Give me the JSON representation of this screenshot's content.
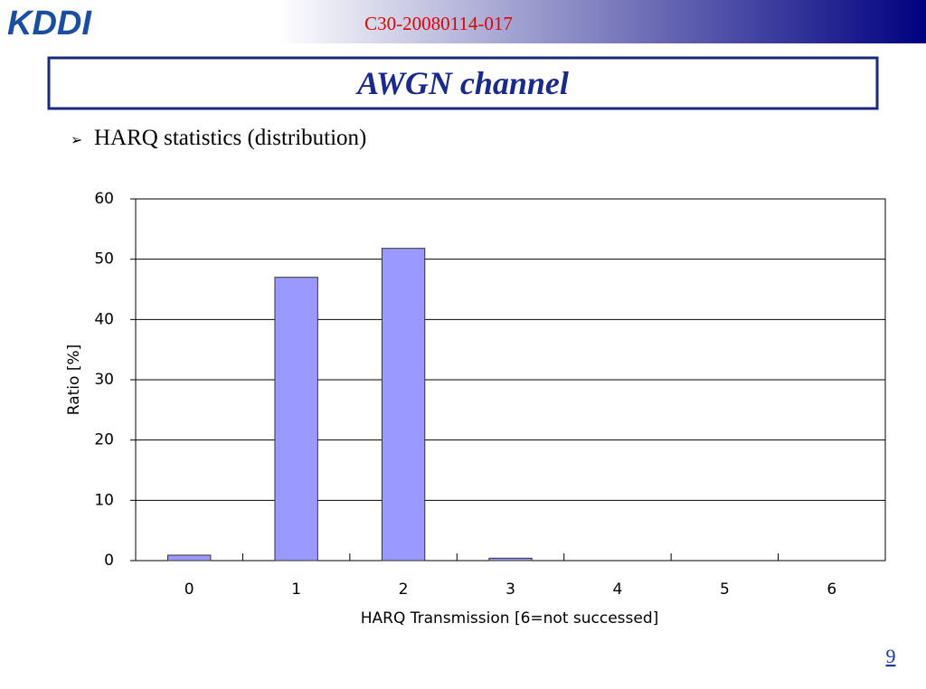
{
  "header": {
    "logo": "KDDI",
    "doc_id": "C30-20080114-017"
  },
  "title": "AWGN channel",
  "bullet": "HARQ statistics (distribution)",
  "page_number": "9",
  "chart_data": {
    "type": "bar",
    "categories": [
      "0",
      "1",
      "2",
      "3",
      "4",
      "5",
      "6"
    ],
    "values": [
      0.9,
      47,
      51.8,
      0.4,
      0,
      0,
      0
    ],
    "color": "#9999ff",
    "ylim": [
      0,
      60
    ],
    "yticks": [
      0,
      10,
      20,
      30,
      40,
      50,
      60
    ],
    "grid": true,
    "x_label": "HARQ Transmission [6=not successed]",
    "y_label": "Ratio [%]"
  }
}
